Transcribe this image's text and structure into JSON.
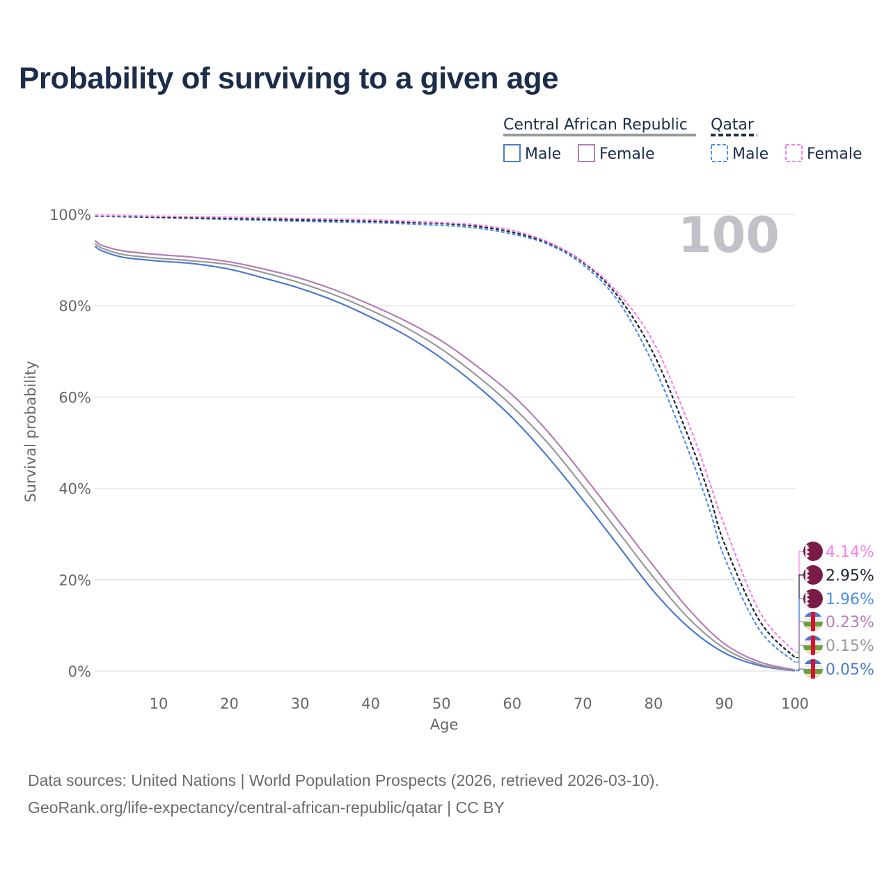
{
  "title": "Probability of surviving to a given age",
  "legend": {
    "groups": [
      {
        "name": "Central African Republic",
        "items": [
          "Male",
          "Female"
        ]
      },
      {
        "name": "Qatar",
        "items": [
          "Male",
          "Female"
        ]
      }
    ]
  },
  "watermark_age": "100",
  "footer": {
    "line1": "Data sources: United Nations | World Population Prospects (2026, retrieved 2026-03-10).",
    "line2": "GeoRank.org/life-expectancy/central-african-republic/qatar | CC BY"
  },
  "chart_data": {
    "type": "line",
    "title": "Probability of surviving to a given age",
    "xlabel": "Age",
    "ylabel": "Survival probability",
    "xlim": [
      1,
      100
    ],
    "ylim": [
      0,
      100
    ],
    "xticks": [
      10,
      20,
      30,
      40,
      50,
      60,
      70,
      80,
      90,
      100
    ],
    "yticks": [
      0,
      20,
      40,
      60,
      80,
      100
    ],
    "ytick_labels": [
      "0%",
      "20%",
      "40%",
      "60%",
      "80%",
      "100%"
    ],
    "series": [
      {
        "name": "Central African Republic Male",
        "color": "#4a7acb",
        "dashed": false,
        "x": [
          1,
          2,
          5,
          10,
          15,
          20,
          25,
          30,
          35,
          40,
          45,
          50,
          55,
          60,
          65,
          70,
          75,
          80,
          85,
          90,
          95,
          100
        ],
        "y": [
          93,
          92,
          90.6,
          89.8,
          89.2,
          88,
          86,
          83.8,
          81,
          77.5,
          73.5,
          68.5,
          62.5,
          55.5,
          47,
          37.5,
          27.5,
          17.5,
          9.5,
          4,
          1.2,
          0.05
        ],
        "end_label": "0.05%"
      },
      {
        "name": "Central African Republic Total",
        "color": "#999999",
        "dashed": false,
        "x": [
          1,
          2,
          5,
          10,
          15,
          20,
          25,
          30,
          35,
          40,
          45,
          50,
          55,
          60,
          65,
          70,
          75,
          80,
          85,
          90,
          95,
          100
        ],
        "y": [
          93.6,
          92.6,
          91.2,
          90.4,
          89.8,
          89,
          87.2,
          85,
          82.3,
          79,
          75.2,
          70.5,
          64.7,
          58,
          50,
          40.5,
          30.5,
          20.5,
          11.5,
          5,
          1.5,
          0.15
        ],
        "end_label": "0.15%"
      },
      {
        "name": "Central African Republic Female",
        "color": "#b57cb8",
        "dashed": false,
        "x": [
          1,
          2,
          5,
          10,
          15,
          20,
          25,
          30,
          35,
          40,
          45,
          50,
          55,
          60,
          65,
          70,
          75,
          80,
          85,
          90,
          95,
          100
        ],
        "y": [
          94.3,
          93.2,
          92,
          91.2,
          90.6,
          89.6,
          88,
          86,
          83.4,
          80.2,
          76.6,
          72.3,
          66.8,
          60.5,
          52.5,
          43,
          33,
          23,
          13.5,
          6,
          2,
          0.23
        ],
        "end_label": "0.23%"
      },
      {
        "name": "Qatar Male",
        "color": "#4a8ff0",
        "dashed": true,
        "x": [
          1,
          10,
          20,
          30,
          40,
          50,
          55,
          60,
          65,
          70,
          75,
          80,
          85,
          88,
          90,
          95,
          100
        ],
        "y": [
          99.6,
          99.3,
          98.9,
          98.5,
          98.2,
          97.6,
          97,
          95.7,
          93.5,
          89,
          81,
          67,
          48,
          35,
          25,
          9,
          1.96
        ],
        "end_label": "1.96%"
      },
      {
        "name": "Qatar Total",
        "color": "#1b2433",
        "dashed": true,
        "x": [
          1,
          10,
          20,
          30,
          40,
          50,
          55,
          60,
          65,
          70,
          75,
          80,
          85,
          88,
          90,
          95,
          100
        ],
        "y": [
          99.7,
          99.4,
          99.1,
          98.8,
          98.5,
          98,
          97.4,
          96.1,
          93.8,
          89.5,
          82,
          69.5,
          51,
          38,
          28,
          11,
          2.95
        ],
        "end_label": "2.95%"
      },
      {
        "name": "Qatar Female",
        "color": "#f77ee8",
        "dashed": true,
        "x": [
          1,
          10,
          20,
          30,
          40,
          50,
          55,
          60,
          65,
          70,
          75,
          80,
          85,
          88,
          90,
          95,
          100
        ],
        "y": [
          99.8,
          99.6,
          99.4,
          99.1,
          98.8,
          98.2,
          97.7,
          96.5,
          94,
          89.7,
          82.8,
          72,
          54,
          41,
          32,
          13,
          4.14
        ],
        "end_label": "4.14%"
      }
    ],
    "legend_position": "top-right"
  }
}
